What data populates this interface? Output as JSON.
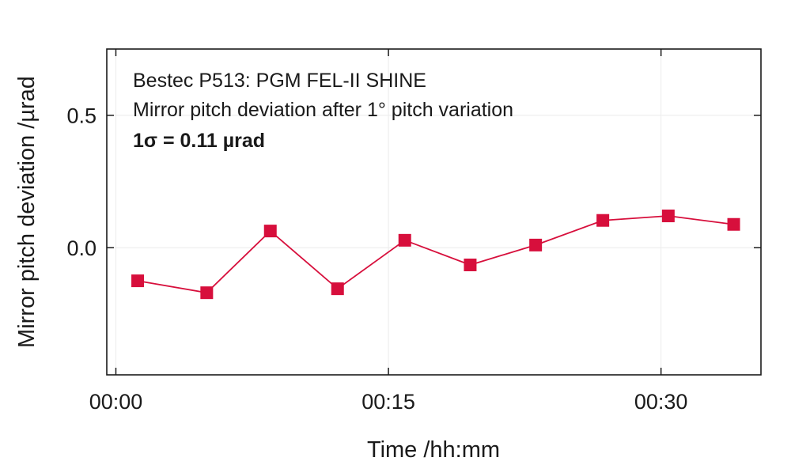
{
  "chart_data": {
    "type": "line",
    "xlabel": "Time /hh:mm",
    "ylabel": "Mirror pitch deviation /µrad",
    "xlim": [
      "-00:00.5",
      "00:35.5"
    ],
    "xlim_minutes": [
      -0.5,
      35.5
    ],
    "ylim": [
      -0.48,
      0.75
    ],
    "x_ticks": [
      {
        "value": 0,
        "label": "00:00"
      },
      {
        "value": 15,
        "label": "00:15"
      },
      {
        "value": 30,
        "label": "00:30"
      }
    ],
    "y_ticks": [
      {
        "value": 0.0,
        "label": "0.0"
      },
      {
        "value": 0.5,
        "label": "0.5"
      }
    ],
    "grid": true,
    "annotations": [
      "Bestec P513: PGM FEL-II SHINE",
      "Mirror pitch deviation after 1° pitch variation",
      "1σ = 0.11 µrad"
    ],
    "series": [
      {
        "color": "#d70f3c",
        "marker": "square",
        "x": [
          "00:01",
          "00:05",
          "00:08",
          "00:12",
          "00:16",
          "00:19",
          "00:23",
          "00:27",
          "00:30",
          "00:34"
        ],
        "x_minutes": [
          1.2,
          5.0,
          8.5,
          12.2,
          15.9,
          19.5,
          23.1,
          26.8,
          30.4,
          34.0
        ],
        "values": [
          -0.125,
          -0.17,
          0.063,
          -0.155,
          0.028,
          -0.065,
          0.01,
          0.103,
          0.12,
          0.088
        ]
      }
    ]
  }
}
